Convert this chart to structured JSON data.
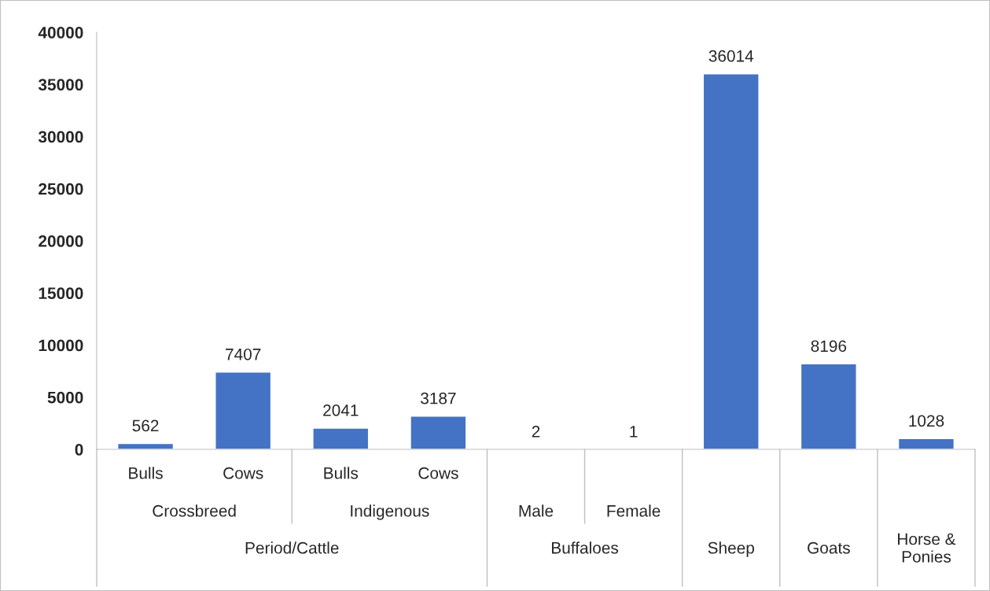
{
  "chart_data": {
    "type": "bar",
    "categories": [
      "Bulls",
      "Cows",
      "Bulls",
      "Cows",
      null,
      null,
      "Sheep",
      "Goats",
      "Horse &\nPonies"
    ],
    "values": [
      562,
      7407,
      2041,
      3187,
      2,
      1,
      36014,
      8196,
      1028
    ],
    "color": "#4472c4",
    "ylim": [
      0,
      40000
    ],
    "yticks": [
      0,
      5000,
      10000,
      15000,
      20000,
      25000,
      30000,
      35000,
      40000
    ],
    "data_labels": true,
    "grid": false,
    "legend": false,
    "annotations": [
      "Male",
      "Female",
      "Crossbreed",
      "Indigenous",
      "Period/Cattle",
      "Buffaloes"
    ]
  }
}
